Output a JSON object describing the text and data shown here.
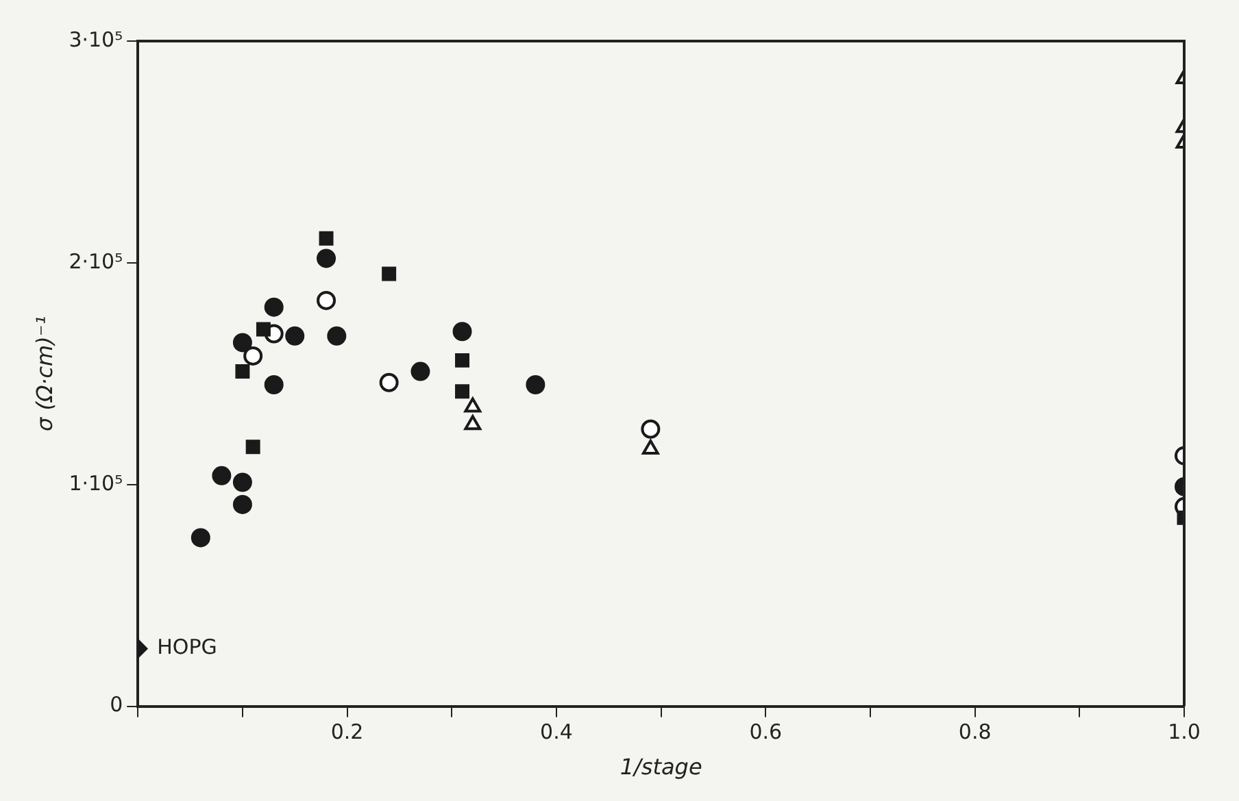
{
  "chart_data": {
    "type": "scatter",
    "xlabel": "1/stage",
    "ylabel": "σ (Ω·cm)⁻¹",
    "xlim": [
      0,
      1.0
    ],
    "xticks": [
      {
        "value": 0,
        "label": null
      },
      {
        "value": 0.1,
        "label": null
      },
      0.2,
      {
        "value": 0.3,
        "label": null
      },
      0.4,
      {
        "value": 0.5,
        "label": null
      },
      0.6,
      {
        "value": 0.7,
        "label": null
      },
      0.8,
      {
        "value": 0.9,
        "label": null
      },
      {
        "value": 1,
        "label": "1.0"
      }
    ],
    "ylim": [
      0,
      300000
    ],
    "yticks": [
      0,
      {
        "value": 100000,
        "label": "1·10⁵"
      },
      {
        "value": 200000,
        "label": "2·10⁵"
      },
      {
        "value": 300000,
        "label": "3·10⁵"
      }
    ],
    "grid": false,
    "legend": false,
    "series": [
      {
        "marker": "circle",
        "color": "#1a1a1a",
        "x": [
          0.18,
          0.13,
          0.1,
          0.15,
          0.19,
          0.31,
          0.27,
          0.13,
          0.38,
          0.08,
          0.1,
          0.1,
          0.06,
          1.0
        ],
        "values": [
          202000,
          180000,
          164000,
          167000,
          167000,
          169000,
          151000,
          145000,
          145000,
          104000,
          101000,
          91000,
          76000,
          99000
        ]
      },
      {
        "marker": "square",
        "color": "#1a1a1a",
        "x": [
          0.18,
          0.24,
          0.12,
          0.1,
          0.31,
          0.31,
          0.11,
          1.0
        ],
        "values": [
          211000,
          195000,
          170000,
          151000,
          156000,
          142000,
          117000,
          85000
        ]
      },
      {
        "marker": "circle",
        "color": "#ffffff",
        "x": [
          0.18,
          0.13,
          0.11,
          0.24,
          0.49,
          1.0,
          1.0
        ],
        "values": [
          183000,
          168000,
          158000,
          146000,
          125000,
          113000,
          90000
        ]
      },
      {
        "marker": "triangle",
        "color": "#ffffff",
        "x": [
          0.32,
          0.32,
          0.49,
          1.0,
          1.0,
          1.0
        ],
        "values": [
          135000,
          127000,
          116000,
          283000,
          261000,
          254000
        ]
      },
      {
        "name": "HOPG",
        "marker": "diamond",
        "color": "#1a1a1a",
        "x": [
          0
        ],
        "values": [
          26000
        ]
      }
    ]
  }
}
